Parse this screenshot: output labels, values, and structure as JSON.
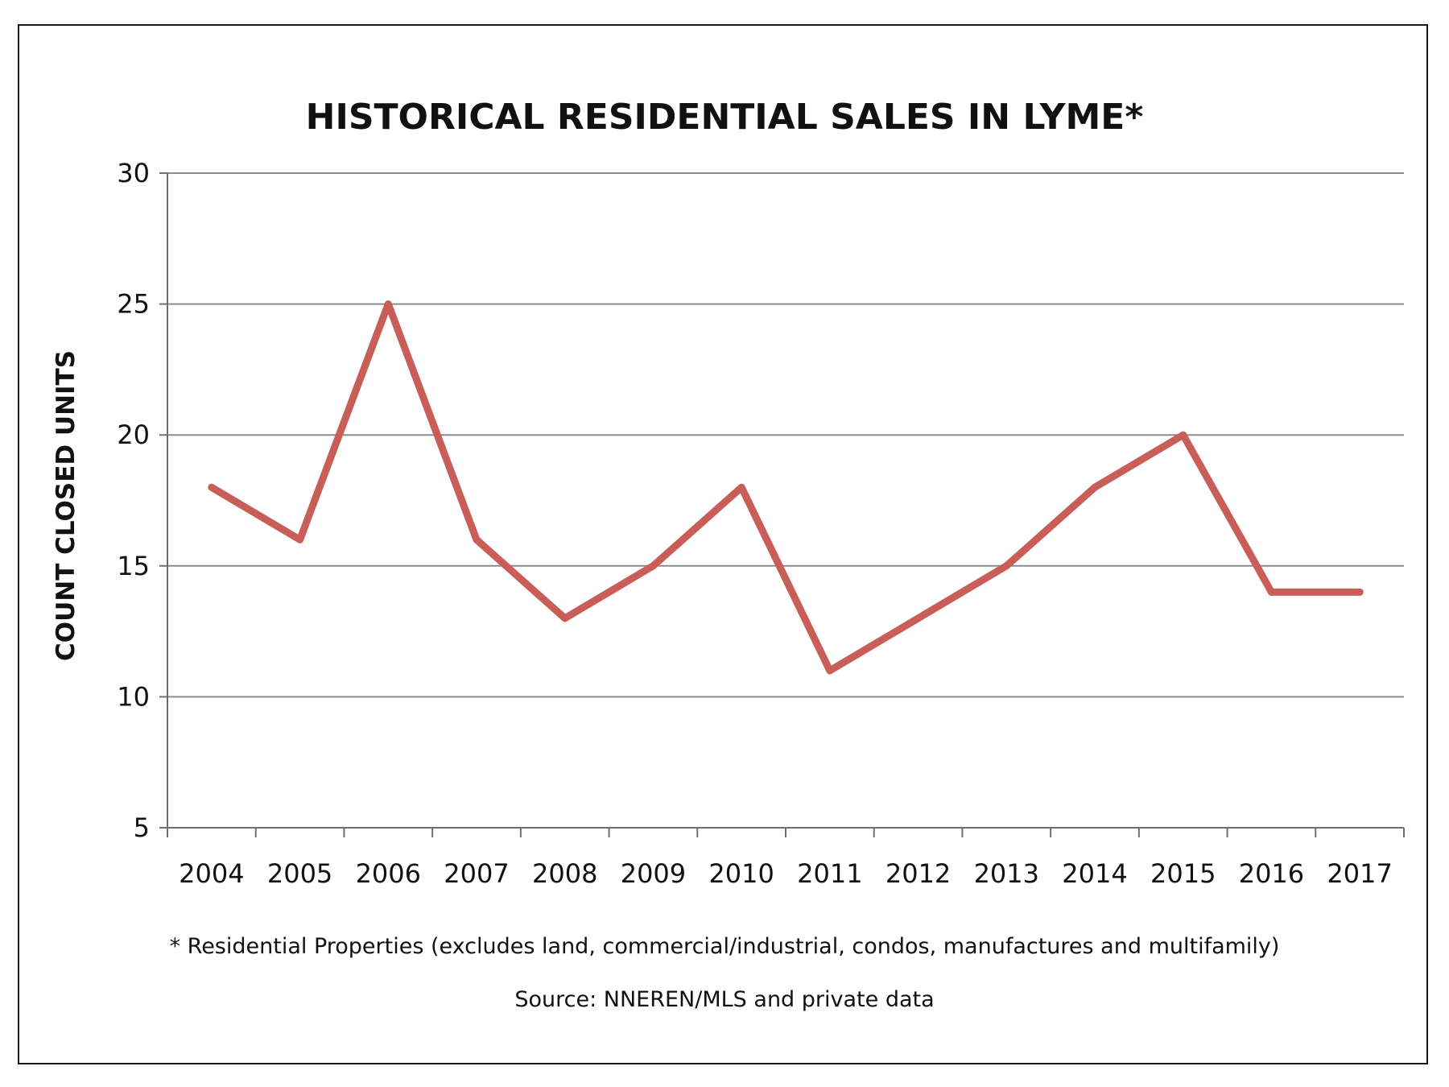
{
  "chart_data": {
    "type": "line",
    "title": "HISTORICAL RESIDENTIAL SALES IN LYME*",
    "xlabel": "",
    "ylabel": "COUNT CLOSED UNITS",
    "categories": [
      "2004",
      "2005",
      "2006",
      "2007",
      "2008",
      "2009",
      "2010",
      "2011",
      "2012",
      "2013",
      "2014",
      "2015",
      "2016",
      "2017"
    ],
    "series": [
      {
        "values": [
          18,
          16,
          25,
          16,
          13,
          15,
          18,
          11,
          13,
          15,
          18,
          20,
          14,
          14
        ],
        "color": "#c95d58"
      }
    ],
    "ylim": [
      5,
      30
    ],
    "yticks": [
      "5",
      "10",
      "15",
      "20",
      "25",
      "30"
    ],
    "grid": true,
    "legend": "none",
    "footnote": "* Residential Properties (excludes land, commercial/industrial, condos, manufactures and multifamily)",
    "source": "Source: NNEREN/MLS and private data"
  },
  "colors": {
    "line": "#c95d58",
    "grid": "#8c8c8c",
    "axis": "#6f6f6f",
    "text": "#111111",
    "frame": "#1a1a1a"
  }
}
